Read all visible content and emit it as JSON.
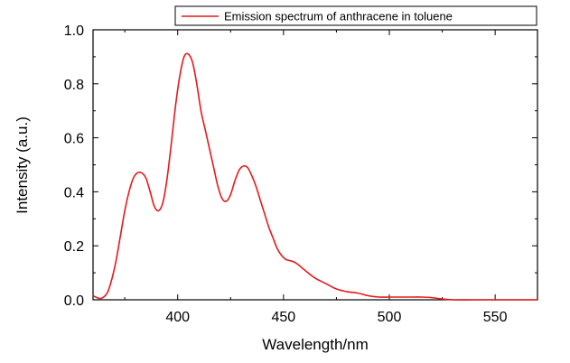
{
  "chart_data": {
    "type": "line",
    "title": "",
    "xlabel": "Wavelength/nm",
    "ylabel": "Intensity (a.u.)",
    "xlim": [
      360,
      570
    ],
    "ylim": [
      0.0,
      1.0
    ],
    "x_ticks": [
      400,
      450,
      500,
      550
    ],
    "x_tick_labels": [
      "400",
      "450",
      "500",
      "550"
    ],
    "y_ticks": [
      0.0,
      0.2,
      0.4,
      0.6,
      0.8,
      1.0
    ],
    "y_tick_labels": [
      "0.0",
      "0.2",
      "0.4",
      "0.6",
      "0.8",
      "1.0"
    ],
    "grid": false,
    "legend_position": "top-right",
    "series": [
      {
        "name": "Emission spectrum of anthracene in toluene",
        "color": "#e31a1c",
        "x": [
          360,
          363,
          365,
          367,
          369,
          371,
          373,
          375,
          377,
          379,
          381,
          383,
          385,
          387,
          389,
          391,
          393,
          395,
          397,
          399,
          401,
          403,
          405,
          407,
          409,
          411,
          413,
          415,
          417,
          419,
          421,
          423,
          425,
          427,
          429,
          431,
          433,
          435,
          437,
          439,
          441,
          443,
          445,
          447,
          449,
          451,
          453,
          455,
          457,
          460,
          465,
          470,
          475,
          480,
          485,
          490,
          495,
          500,
          505,
          510,
          515,
          520,
          525,
          530,
          540,
          550,
          560,
          570
        ],
        "y": [
          0.015,
          0.005,
          0.01,
          0.03,
          0.08,
          0.15,
          0.24,
          0.33,
          0.4,
          0.45,
          0.47,
          0.47,
          0.45,
          0.4,
          0.345,
          0.33,
          0.36,
          0.45,
          0.58,
          0.72,
          0.83,
          0.9,
          0.91,
          0.88,
          0.8,
          0.7,
          0.63,
          0.56,
          0.49,
          0.42,
          0.375,
          0.365,
          0.39,
          0.44,
          0.48,
          0.495,
          0.49,
          0.46,
          0.42,
          0.37,
          0.32,
          0.27,
          0.23,
          0.19,
          0.165,
          0.15,
          0.145,
          0.14,
          0.13,
          0.11,
          0.08,
          0.06,
          0.04,
          0.03,
          0.025,
          0.015,
          0.01,
          0.01,
          0.01,
          0.01,
          0.01,
          0.008,
          0.003,
          0.0,
          0.0,
          0.0,
          0.0,
          0.0
        ]
      }
    ]
  }
}
